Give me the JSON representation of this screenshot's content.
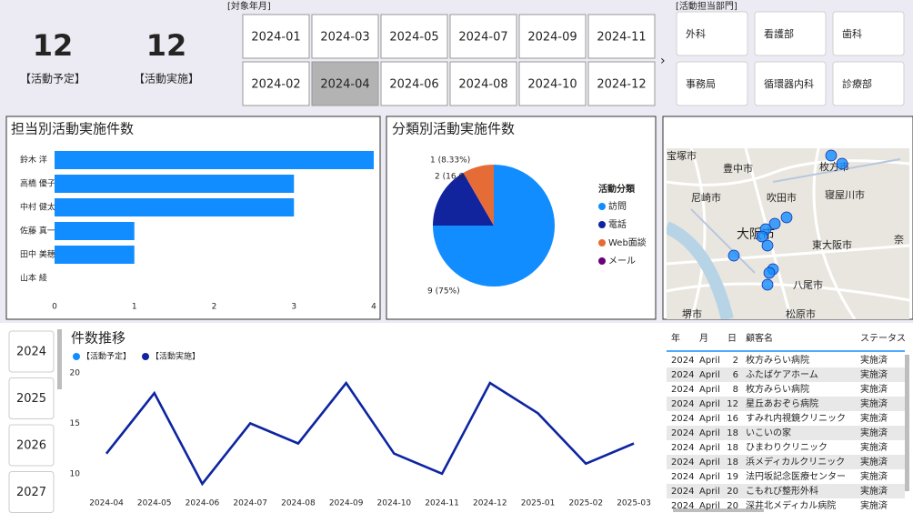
{
  "kpis": [
    {
      "value": 12,
      "label": "【活動予定】"
    },
    {
      "value": 12,
      "label": "【活動実施】"
    }
  ],
  "month_filter": {
    "title": "[対象年月]",
    "options": [
      {
        "label": "2024-01"
      },
      {
        "label": "2024-02"
      },
      {
        "label": "2024-03"
      },
      {
        "label": "2024-04",
        "selected": true
      },
      {
        "label": "2024-05"
      },
      {
        "label": "2024-06"
      },
      {
        "label": "2024-07"
      },
      {
        "label": "2024-08"
      },
      {
        "label": "2024-09"
      },
      {
        "label": "2024-10"
      },
      {
        "label": "2024-11"
      },
      {
        "label": "2024-12"
      }
    ]
  },
  "dept_filter": {
    "title": "[活動担当部門]",
    "options": [
      "外科",
      "看護部",
      "歯科",
      "事務局",
      "循環器内科",
      "診療部"
    ]
  },
  "chart_data": [
    {
      "type": "bar",
      "title": "担当別活動実施件数",
      "categories": [
        "鈴木 洋",
        "高橋 優子",
        "中村 健太",
        "佐藤 真一",
        "田中 美穂",
        "山本 綾"
      ],
      "values": [
        4,
        3,
        3,
        1,
        1,
        0
      ],
      "xlim": [
        0,
        4
      ],
      "xticks": [
        0,
        1,
        2,
        3,
        4
      ],
      "color": "#118dff"
    },
    {
      "type": "pie",
      "title": "分類別活動実施件数",
      "legend_title": "活動分類",
      "categories": [
        "訪問",
        "電話",
        "Web面談",
        "メール"
      ],
      "values": [
        9,
        2,
        1,
        0
      ],
      "value_labels": [
        "9 (75%)",
        "2 (16.67%)",
        "1 (8.33%)",
        null
      ],
      "colors": [
        "#118dff",
        "#12239e",
        "#e66c37",
        "#6b007b"
      ]
    },
    {
      "type": "line",
      "title": "件数推移",
      "categories": [
        "2024-04",
        "2024-05",
        "2024-06",
        "2024-07",
        "2024-08",
        "2024-09",
        "2024-10",
        "2024-11",
        "2024-12",
        "2025-01",
        "2025-02",
        "2025-03"
      ],
      "series": [
        {
          "name": "【活動予定】",
          "color": "#118dff",
          "values": [
            12,
            18,
            9,
            15,
            13,
            19,
            12,
            10,
            19,
            16,
            11,
            13
          ]
        },
        {
          "name": "【活動実施】",
          "color": "#12239e",
          "values": [
            12,
            18,
            9,
            15,
            13,
            19,
            12,
            10,
            19,
            16,
            11,
            13
          ]
        }
      ],
      "ylim": [
        8,
        20
      ],
      "yticks": [
        10,
        15,
        20
      ],
      "legend": "top-left"
    }
  ],
  "year_slicer": [
    "2024",
    "2025",
    "2026",
    "2027"
  ],
  "map": {
    "labels": [
      "宝塚市",
      "豊中市",
      "枚方市",
      "尼崎市",
      "吹田市",
      "寝屋川市",
      "大阪市",
      "東大阪市",
      "奈",
      "八尾市",
      "松原市",
      "堺市"
    ]
  },
  "table": {
    "columns": [
      "年",
      "月",
      "日",
      "顧客名",
      "ステータス"
    ],
    "rows": [
      [
        "2024",
        "April",
        "2",
        "枚方みらい病院",
        "実施済"
      ],
      [
        "2024",
        "April",
        "6",
        "ふたばケアホーム",
        "実施済"
      ],
      [
        "2024",
        "April",
        "8",
        "枚方みらい病院",
        "実施済"
      ],
      [
        "2024",
        "April",
        "12",
        "星丘あおぞら病院",
        "実施済"
      ],
      [
        "2024",
        "April",
        "16",
        "すみれ内視鏡クリニック",
        "実施済"
      ],
      [
        "2024",
        "April",
        "18",
        "いこいの家",
        "実施済"
      ],
      [
        "2024",
        "April",
        "18",
        "ひまわりクリニック",
        "実施済"
      ],
      [
        "2024",
        "April",
        "18",
        "浜メディカルクリニック",
        "実施済"
      ],
      [
        "2024",
        "April",
        "19",
        "法円坂記念医療センター",
        "実施済"
      ],
      [
        "2024",
        "April",
        "20",
        "こもれび整形外科",
        "実施済"
      ],
      [
        "2024",
        "April",
        "20",
        "深井北メディカル病院",
        "実施済"
      ]
    ]
  }
}
